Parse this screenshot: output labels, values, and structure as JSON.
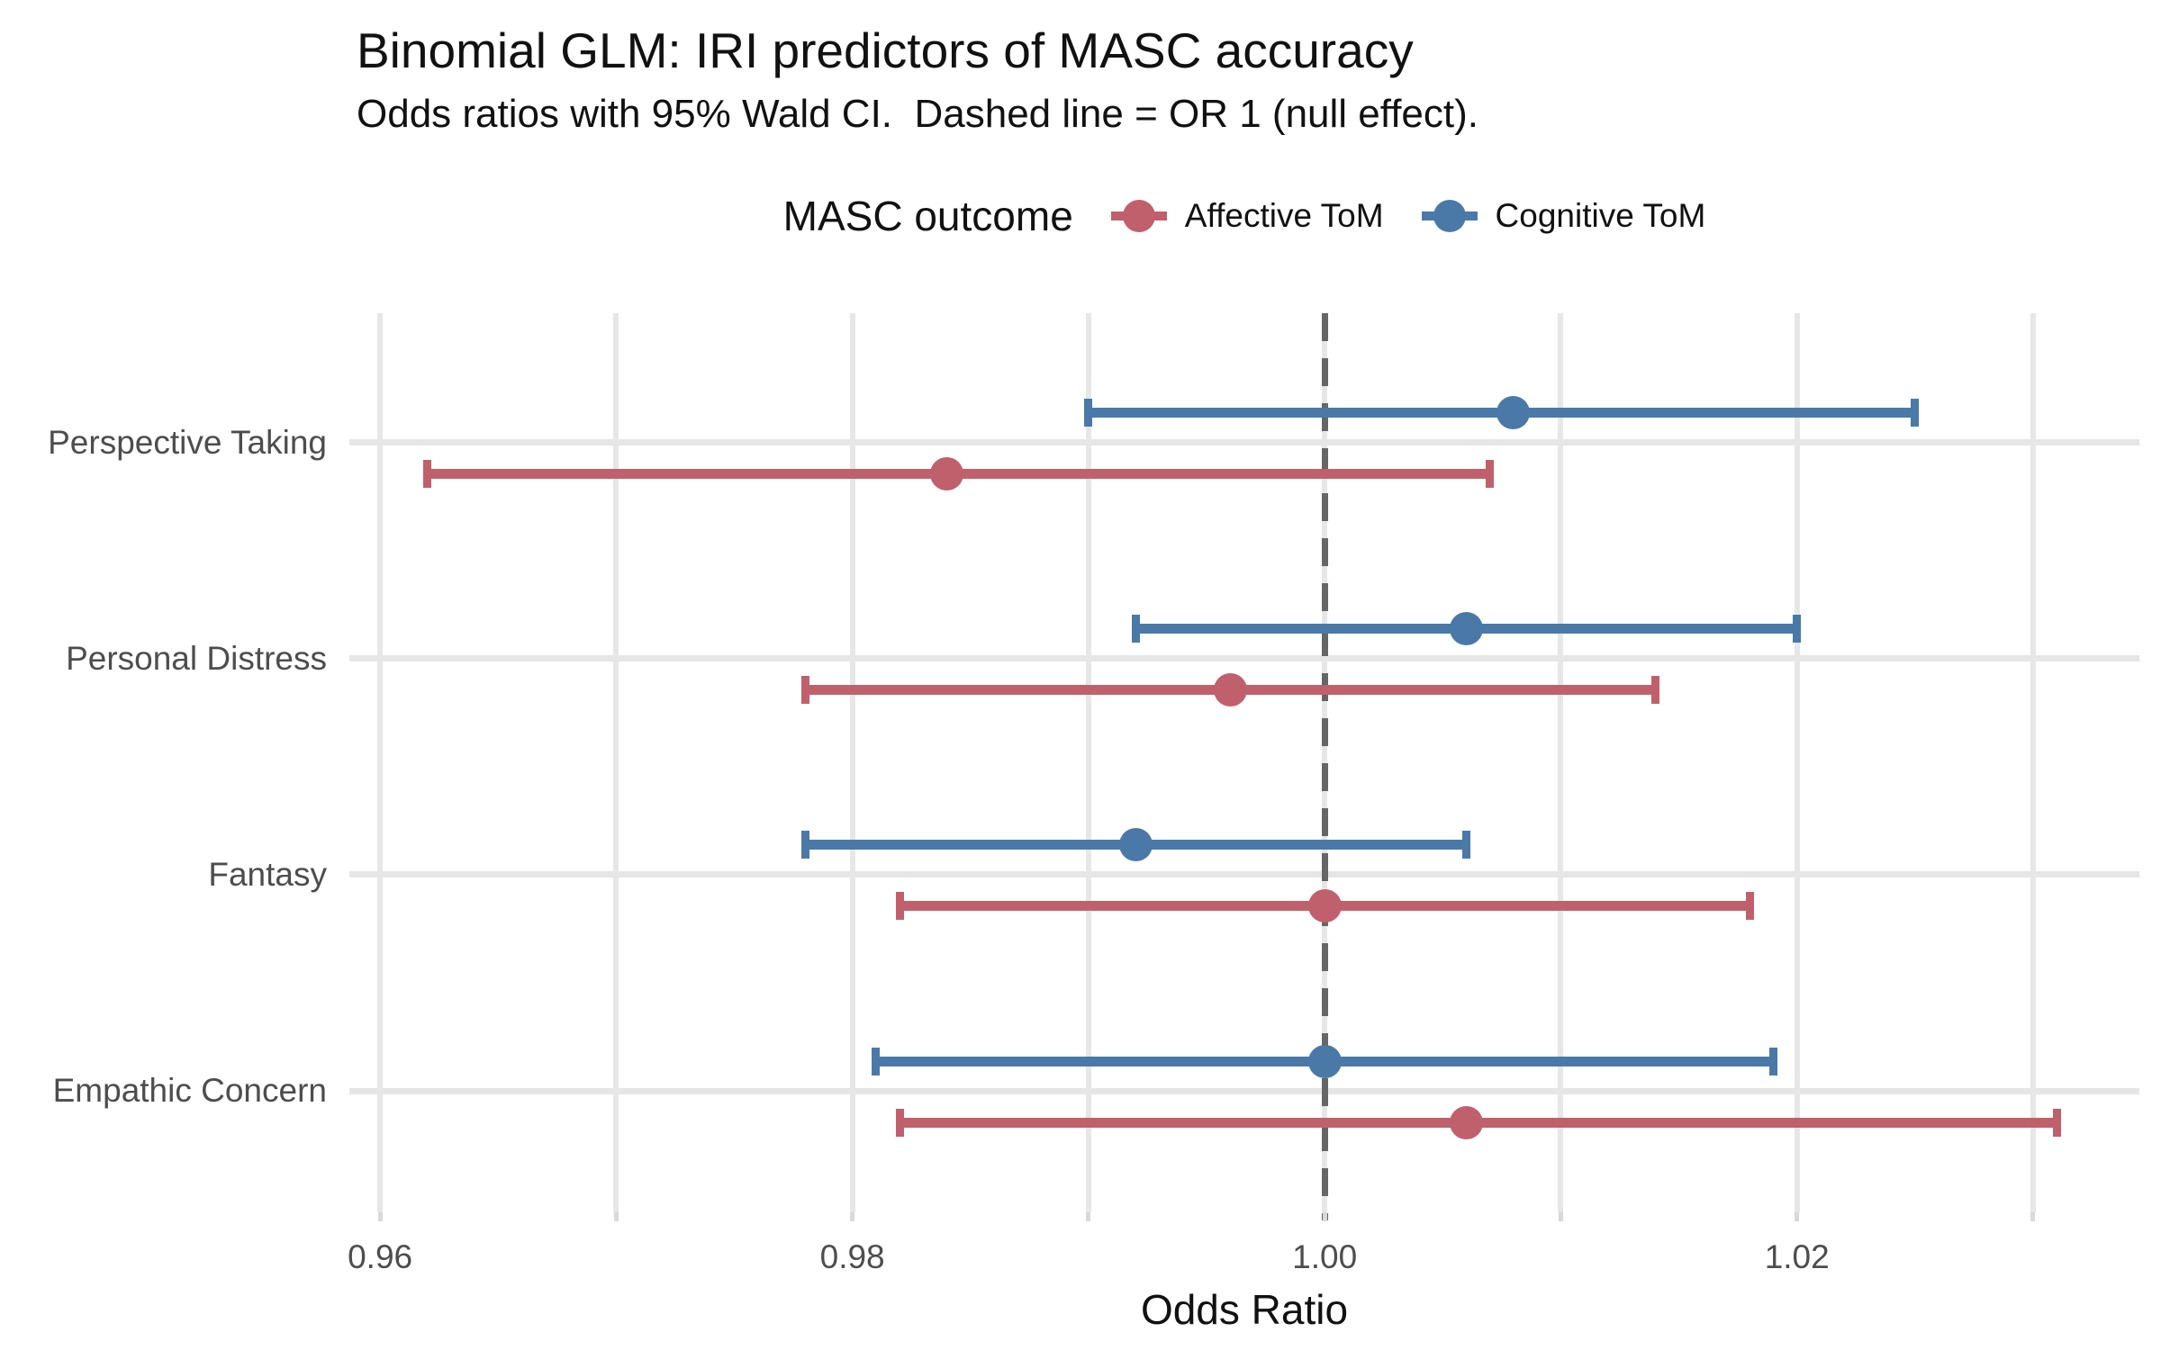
{
  "title": "Binomial GLM: IRI predictors of MASC accuracy",
  "subtitle": "Odds ratios with 95% Wald CI.  Dashed line = OR 1 (null effect).",
  "legend": {
    "title": "MASC outcome",
    "items": [
      {
        "label": "Affective ToM",
        "color": "#C0606C"
      },
      {
        "label": "Cognitive ToM",
        "color": "#4A79A8"
      }
    ]
  },
  "axes": {
    "x_title": "Odds Ratio",
    "x_major_ticks": [
      0.96,
      0.98,
      1.0,
      1.02
    ],
    "x_major_tick_labels": [
      "0.96",
      "0.98",
      "1.00",
      "1.02"
    ],
    "x_gridlines": [
      0.96,
      0.97,
      0.98,
      0.99,
      1.0,
      1.01,
      1.02,
      1.03
    ],
    "x_range": [
      0.9587,
      1.0345
    ]
  },
  "reference_line": {
    "value": 1.0,
    "meaning": "OR 1 (null effect)",
    "style": "dashed",
    "color": "#666666"
  },
  "colors": {
    "affective": "#C0606C",
    "cognitive": "#4A79A8",
    "gridline": "#e6e6e6",
    "axis_text": "#4d4d4d"
  },
  "chart_data": {
    "type": "scatter",
    "subtype": "forest-pointrange",
    "title": "Binomial GLM: IRI predictors of MASC accuracy",
    "xlabel": "Odds Ratio",
    "ylabel": "",
    "xlim": [
      0.9587,
      1.0345
    ],
    "grid": true,
    "legend_position": "top",
    "categories": [
      "Perspective Taking",
      "Personal Distress",
      "Fantasy",
      "Empathic Concern"
    ],
    "series": [
      {
        "name": "Cognitive ToM",
        "color": "#4A79A8",
        "values": [
          {
            "category": "Perspective Taking",
            "or": 1.008,
            "ci_low": 0.99,
            "ci_high": 1.025
          },
          {
            "category": "Personal Distress",
            "or": 1.006,
            "ci_low": 0.992,
            "ci_high": 1.02
          },
          {
            "category": "Fantasy",
            "or": 0.992,
            "ci_low": 0.978,
            "ci_high": 1.006
          },
          {
            "category": "Empathic Concern",
            "or": 1.0,
            "ci_low": 0.981,
            "ci_high": 1.019
          }
        ]
      },
      {
        "name": "Affective ToM",
        "color": "#C0606C",
        "values": [
          {
            "category": "Perspective Taking",
            "or": 0.984,
            "ci_low": 0.962,
            "ci_high": 1.007
          },
          {
            "category": "Personal Distress",
            "or": 0.996,
            "ci_low": 0.978,
            "ci_high": 1.014
          },
          {
            "category": "Fantasy",
            "or": 1.0,
            "ci_low": 0.982,
            "ci_high": 1.018
          },
          {
            "category": "Empathic Concern",
            "or": 1.006,
            "ci_low": 0.982,
            "ci_high": 1.031
          }
        ]
      }
    ]
  }
}
